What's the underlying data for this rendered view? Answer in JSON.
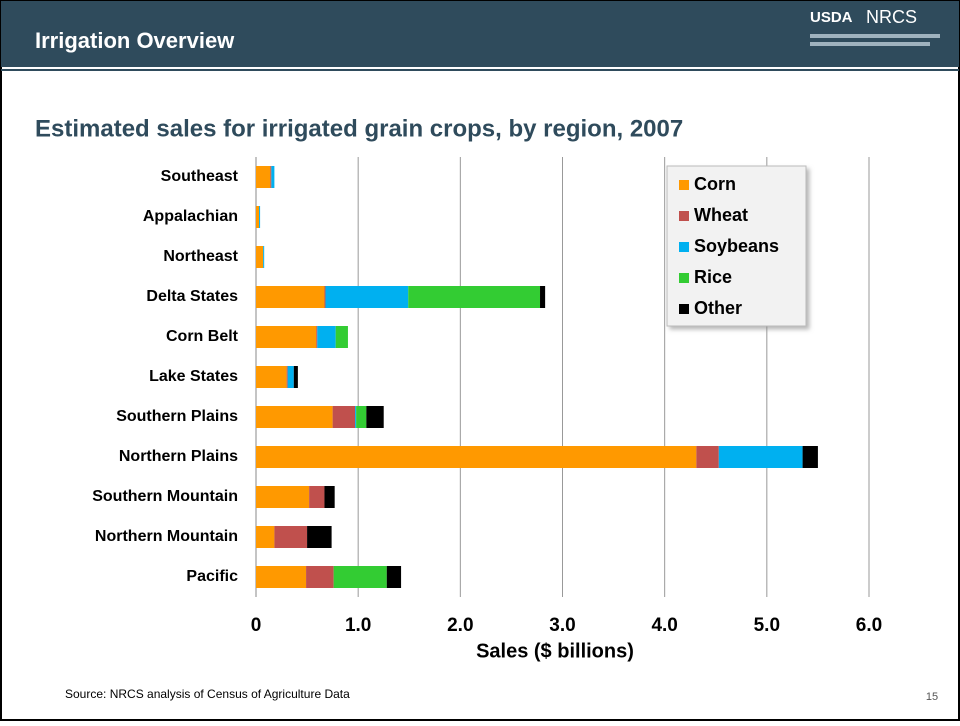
{
  "header": {
    "title": "Irrigation Overview",
    "logo": [
      "USDA",
      "NRCS"
    ]
  },
  "footer": {
    "source": "Source: NRCS analysis of Census of Agriculture Data",
    "page": "15"
  },
  "chart_data": {
    "type": "stacked_bar_horizontal",
    "title": "Estimated sales for irrigated grain crops, by region, 2007",
    "x_label": "Sales ($ billions)",
    "categories": [
      "Southeast",
      "Appalachian",
      "Northeast",
      "Delta States",
      "Corn Belt",
      "Lake States",
      "Southern Plains",
      "Northern Plains",
      "Southern Mountain",
      "Northern Mountain",
      "Pacific"
    ],
    "series": [
      {
        "name": "Corn",
        "color": "#ff9900",
        "values": [
          0.14,
          0.03,
          0.07,
          0.67,
          0.59,
          0.3,
          0.75,
          4.31,
          0.52,
          0.18,
          0.49
        ]
      },
      {
        "name": "Wheat",
        "color": "#c0504d",
        "values": [
          0.01,
          0,
          0,
          0.01,
          0.01,
          0.01,
          0.22,
          0.22,
          0.15,
          0.32,
          0.27
        ]
      },
      {
        "name": "Soybeans",
        "color": "#00b0f0",
        "values": [
          0.03,
          0.01,
          0.01,
          0.81,
          0.18,
          0.06,
          0.01,
          0.82,
          0,
          0,
          0
        ]
      },
      {
        "name": "Rice",
        "color": "#33cc33",
        "values": [
          0,
          0,
          0,
          1.29,
          0.12,
          0,
          0.1,
          0,
          0,
          0,
          0.52
        ]
      },
      {
        "name": "Other",
        "color": "#000000",
        "values": [
          0,
          0,
          0,
          0.05,
          0,
          0.04,
          0.17,
          0.15,
          0.1,
          0.24,
          0.14
        ]
      }
    ],
    "xlim": [
      0,
      6
    ],
    "xticks": [
      0,
      {
        "value": 1,
        "label": "1.0"
      },
      {
        "value": 2,
        "label": "2.0"
      },
      {
        "value": 3,
        "label": "3.0"
      },
      {
        "value": 4,
        "label": "4.0"
      },
      {
        "value": 5,
        "label": "5.0"
      },
      {
        "value": 6,
        "label": "6.0"
      }
    ],
    "grid": true,
    "legend": "top-right"
  }
}
